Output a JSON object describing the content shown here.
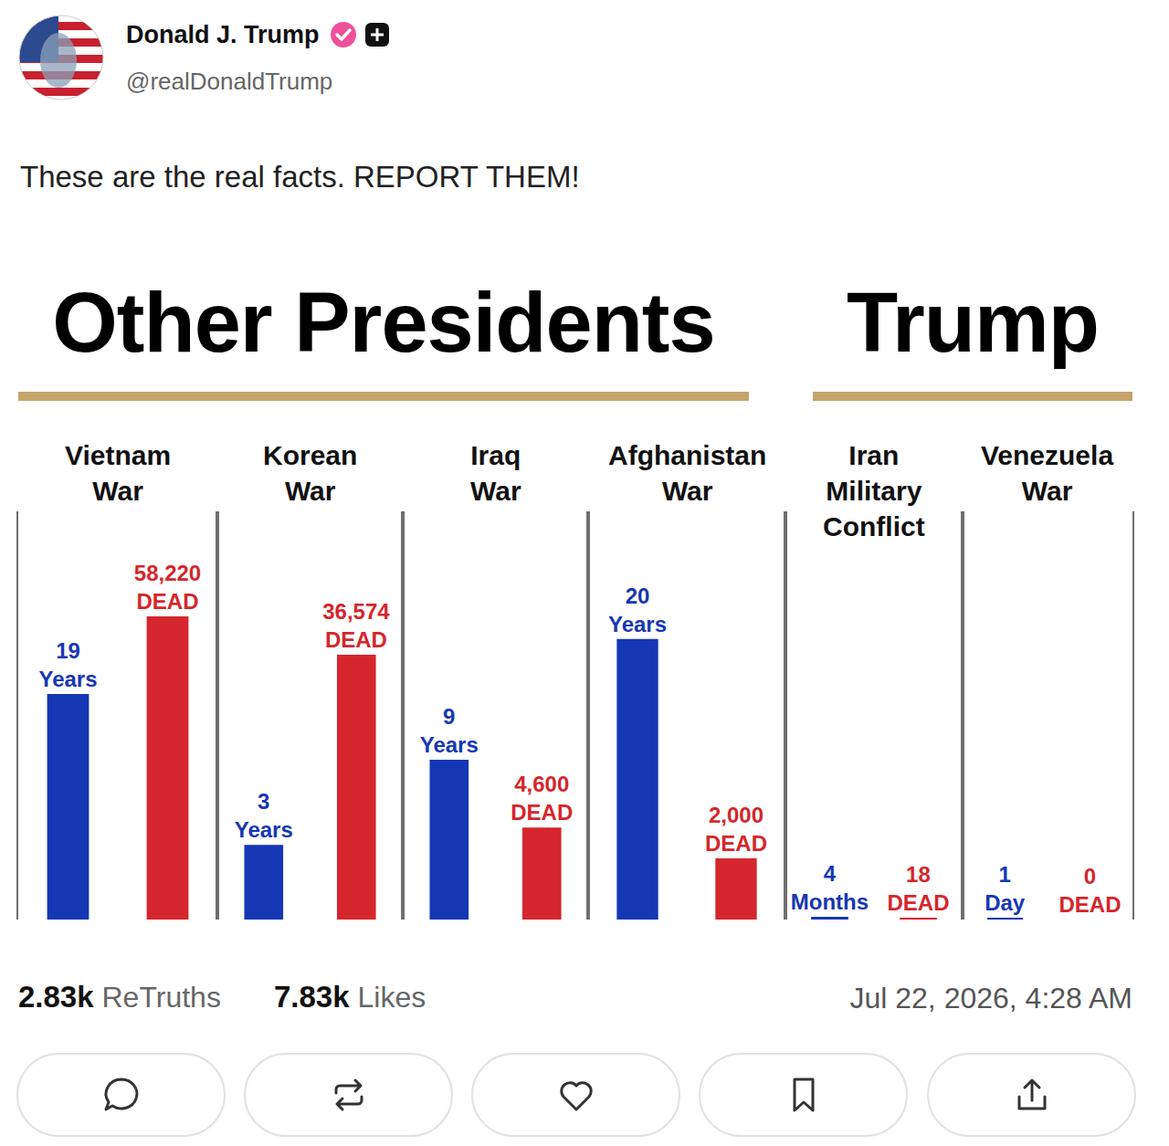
{
  "post": {
    "author": "Donald J. Trump",
    "handle": "@realDonaldTrump",
    "text": "These are the real facts. REPORT THEM!",
    "retruths": "2.83k",
    "retruths_label": "ReTruths",
    "likes": "7.83k",
    "likes_label": "Likes",
    "timestamp": "Jul 22, 2026, 4:28 AM"
  },
  "groups": [
    {
      "title": "Other Presidents",
      "panel_count": 4
    },
    {
      "title": "Trump",
      "panel_count": 2
    }
  ],
  "chart_data": [
    {
      "type": "bar",
      "title": "Vietnam War",
      "categories": [
        null
      ],
      "data_labels": true,
      "tick_labels": false,
      "grid": false,
      "ylim": [
        0,
        34.4
      ],
      "yticks": [],
      "y2lim": [
        0,
        78400
      ],
      "y2ticks": [],
      "series": [
        {
          "color": "#1637b4",
          "values": [
            19
          ],
          "value_labels": [
            "19 Years"
          ]
        },
        {
          "color": "#d4262c",
          "axis": "y2",
          "values": [
            58220
          ],
          "value_labels": [
            "58,220 DEAD"
          ]
        }
      ]
    },
    {
      "type": "bar",
      "title": "Korean War",
      "categories": [
        null
      ],
      "data_labels": true,
      "tick_labels": false,
      "grid": false,
      "ylim": [
        0,
        16.4
      ],
      "yticks": [],
      "y2lim": [
        0,
        56370
      ],
      "y2ticks": [],
      "series": [
        {
          "color": "#1637b4",
          "values": [
            3
          ],
          "value_labels": [
            "3 Years"
          ]
        },
        {
          "color": "#d4262c",
          "axis": "y2",
          "values": [
            36574
          ],
          "value_labels": [
            "36,574 DEAD"
          ]
        }
      ]
    },
    {
      "type": "bar",
      "title": "Iraq War",
      "categories": [
        null
      ],
      "data_labels": true,
      "tick_labels": false,
      "grid": false,
      "ylim": [
        0,
        23
      ],
      "yticks": [],
      "y2lim": [
        0,
        20400
      ],
      "y2ticks": [],
      "series": [
        {
          "color": "#1637b4",
          "values": [
            9
          ],
          "value_labels": [
            "9 Years"
          ]
        },
        {
          "color": "#d4262c",
          "axis": "y2",
          "values": [
            4600
          ],
          "value_labels": [
            "4,600 DEAD"
          ]
        }
      ]
    },
    {
      "type": "bar",
      "title": "Afghanistan War",
      "categories": [
        null
      ],
      "data_labels": true,
      "tick_labels": false,
      "grid": false,
      "ylim": [
        0,
        29.1
      ],
      "yticks": [],
      "y2lim": [
        0,
        13340
      ],
      "y2ticks": [],
      "series": [
        {
          "color": "#1637b4",
          "values": [
            20
          ],
          "value_labels": [
            "20 Years"
          ]
        },
        {
          "color": "#d4262c",
          "axis": "y2",
          "values": [
            2000
          ],
          "value_labels": [
            "2,000 DEAD"
          ]
        }
      ]
    },
    {
      "type": "bar",
      "title": "Iran Military Conflict",
      "categories": [
        null
      ],
      "data_labels": true,
      "tick_labels": false,
      "grid": false,
      "ylim": [
        0,
        600
      ],
      "yticks": [],
      "y2lim": [
        0,
        4000
      ],
      "y2ticks": [],
      "series": [
        {
          "color": "#1637b4",
          "values": [
            4
          ],
          "value_labels": [
            "4 Months"
          ]
        },
        {
          "color": "#d4262c",
          "axis": "y2",
          "values": [
            18
          ],
          "value_labels": [
            "18 DEAD"
          ]
        }
      ]
    },
    {
      "type": "bar",
      "title": "Venezuela War",
      "categories": [
        null
      ],
      "data_labels": true,
      "tick_labels": false,
      "grid": false,
      "ylim": [
        0,
        220
      ],
      "yticks": [],
      "y2lim": [
        0,
        1
      ],
      "y2ticks": [],
      "series": [
        {
          "color": "#1637b4",
          "values": [
            1
          ],
          "value_labels": [
            "1 Day"
          ]
        },
        {
          "color": "#d4262c",
          "axis": "y2",
          "values": [
            0
          ],
          "value_labels": [
            "0 DEAD"
          ]
        }
      ]
    }
  ]
}
